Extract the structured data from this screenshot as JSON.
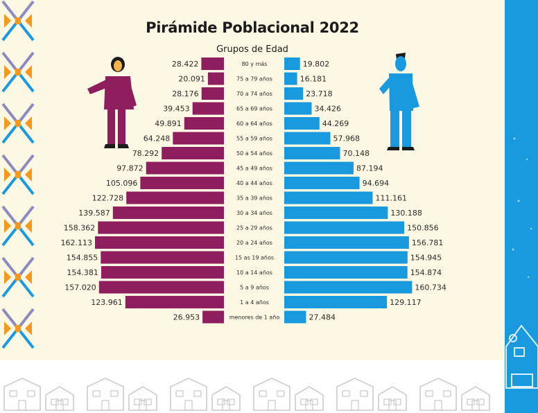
{
  "chart_data": {
    "type": "bar",
    "title": "Pirámide Poblacional 2022",
    "subtitle": "Grupos de Edad",
    "orientation": "horizontal-population-pyramid",
    "categories": [
      "80 y más",
      "75 a 79 años",
      "70 a 74 años",
      "65 a 69 años",
      "60 a 64 años",
      "55 a 59 años",
      "50 a 54 años",
      "45 a 49 años",
      "40 a 44 años",
      "35 a 39 años",
      "30 a 34 años",
      "25 a 29 años",
      "20 a 24 años",
      "15 as 19 años",
      "10 a 14 años",
      "5 a 9 años",
      "1 a 4 años",
      "menores de 1 año"
    ],
    "series": [
      {
        "side": "left",
        "values": [
          28422,
          20091,
          28176,
          39453,
          49891,
          64248,
          78292,
          97872,
          105096,
          122728,
          139587,
          158362,
          162113,
          154855,
          154381,
          157020,
          123961,
          26953
        ],
        "labels": [
          "28.422",
          "20.091",
          "28.176",
          "39.453",
          "49.891",
          "64.248",
          "78.292",
          "97.872",
          "105.096",
          "122.728",
          "139.587",
          "158.362",
          "162.113",
          "154.855",
          "154.381",
          "157.020",
          "123.961",
          "26.953"
        ]
      },
      {
        "side": "right",
        "values": [
          19802,
          16181,
          23718,
          34426,
          44269,
          57968,
          70148,
          87194,
          94694,
          111161,
          130188,
          150856,
          156781,
          154945,
          154874,
          160734,
          129117,
          27484
        ],
        "labels": [
          "19.802",
          "16.181",
          "23.718",
          "34.426",
          "44.269",
          "57.968",
          "70.148",
          "87.194",
          "94.694",
          "111.161",
          "130.188",
          "150.856",
          "156.781",
          "154.945",
          "154.874",
          "160.734",
          "129.117",
          "27.484"
        ]
      }
    ],
    "grid": false,
    "legend": "none"
  },
  "colors": {
    "left": "#8e1e5e",
    "right": "#1a9ade",
    "background": "#fdf8e3",
    "text": "#2b2b2b"
  },
  "decorations": {
    "left_border": "woven-pattern-icon",
    "bottom_border": "houses-row-icon",
    "left_figure": "woman-figure-icon",
    "right_figure": "man-figure-icon"
  }
}
